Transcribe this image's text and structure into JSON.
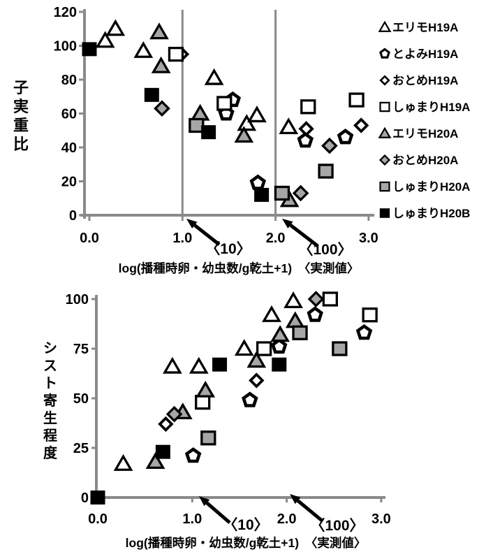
{
  "colors": {
    "background": "#ffffff",
    "axis_gray": "#8a8a8a",
    "marker_gray_fill": "#a6a6a6",
    "marker_black": "#000000",
    "marker_open_fill": "#ffffff",
    "text": "#000000"
  },
  "legend": {
    "items": [
      {
        "label": "エリモH19A",
        "marker": "triangle-open"
      },
      {
        "label": "とよみH19A",
        "marker": "pentagon-open"
      },
      {
        "label": "おとめH19A",
        "marker": "diamond-open"
      },
      {
        "label": "しゅまりH19A",
        "marker": "square-open"
      },
      {
        "label": "エリモH20A",
        "marker": "triangle-gray"
      },
      {
        "label": "おとめH20A",
        "marker": "diamond-gray"
      },
      {
        "label": "しゅまりH20A",
        "marker": "square-gray"
      },
      {
        "label": "しゅまりH20B",
        "marker": "square-black"
      }
    ]
  },
  "chart_data": [
    {
      "id": "top",
      "type": "scatter",
      "title": "",
      "xlabel": "log(播種時卵・幼虫数/g乾土+1)　〈実測値〉",
      "ylabel": "子実重比",
      "xlim": [
        0.0,
        3.0
      ],
      "ylim": [
        0,
        120
      ],
      "xtick_values": [
        0,
        1,
        2,
        3
      ],
      "xtick_labels": [
        "0.0",
        "1.0",
        "2.0",
        "3.0"
      ],
      "ytick_values": [
        120,
        100,
        80,
        60,
        40,
        20,
        0
      ],
      "ytick_labels": [
        "120",
        "100",
        "80",
        "60",
        "40",
        "20",
        "0"
      ],
      "gridlines_x": [
        1.0,
        2.0
      ],
      "grid": "vertical-only",
      "legend_position": "right-outside",
      "annotations": [
        {
          "text": "〈10〉",
          "points_to_x": 1.0
        },
        {
          "text": "〈100〉",
          "points_to_x": 2.0
        }
      ],
      "series": [
        {
          "name": "エリモH19A",
          "marker": "triangle-open",
          "points": [
            [
              0.17,
              103
            ],
            [
              0.28,
              110
            ],
            [
              0.58,
              97
            ],
            [
              1.34,
              81
            ],
            [
              1.69,
              54
            ],
            [
              1.8,
              59
            ],
            [
              2.14,
              52
            ]
          ]
        },
        {
          "name": "とよみH19A",
          "marker": "pentagon-open",
          "points": [
            [
              1.47,
              60
            ],
            [
              1.54,
              68
            ],
            [
              1.81,
              19
            ],
            [
              2.32,
              44
            ],
            [
              2.75,
              46
            ]
          ]
        },
        {
          "name": "おとめH19A",
          "marker": "diamond-open",
          "points": [
            [
              0.99,
              95
            ],
            [
              2.33,
              51
            ],
            [
              2.92,
              53
            ]
          ]
        },
        {
          "name": "しゅまりH19A",
          "marker": "square-open",
          "points": [
            [
              0.93,
              95
            ],
            [
              1.45,
              66
            ],
            [
              2.35,
              64
            ],
            [
              2.87,
              68
            ]
          ]
        },
        {
          "name": "エリモH20A",
          "marker": "triangle-gray",
          "points": [
            [
              0.75,
              108
            ],
            [
              0.77,
              88
            ],
            [
              1.19,
              60
            ],
            [
              1.66,
              47
            ],
            [
              2.15,
              9
            ]
          ]
        },
        {
          "name": "おとめH20A",
          "marker": "diamond-gray",
          "points": [
            [
              0.78,
              63
            ],
            [
              2.27,
              13
            ],
            [
              2.58,
              41
            ]
          ]
        },
        {
          "name": "しゅまりH20A",
          "marker": "square-gray",
          "points": [
            [
              1.15,
              53
            ],
            [
              2.07,
              13
            ],
            [
              2.54,
              26
            ]
          ]
        },
        {
          "name": "しゅまりH20B",
          "marker": "square-black",
          "points": [
            [
              0.0,
              98
            ],
            [
              0.67,
              71
            ],
            [
              1.28,
              49
            ],
            [
              1.85,
              12
            ]
          ]
        }
      ]
    },
    {
      "id": "bottom",
      "type": "scatter",
      "title": "",
      "xlabel": "log(播種時卵・幼虫数/g乾土+1)　〈実測値〉",
      "ylabel": "シスト寄生程度",
      "xlim": [
        0.0,
        3.0
      ],
      "ylim": [
        0,
        100
      ],
      "xtick_values": [
        0,
        1,
        2,
        3
      ],
      "xtick_labels": [
        "0.0",
        "1.0",
        "2.0",
        "3.0"
      ],
      "ytick_values": [
        100,
        75,
        50,
        25,
        0
      ],
      "ytick_labels": [
        "100",
        "75",
        "50",
        "25",
        "0"
      ],
      "gridlines_x": [],
      "grid": "off",
      "legend_position": "none",
      "annotations": [
        {
          "text": "〈10〉",
          "points_to_x": 1.0
        },
        {
          "text": "〈100〉",
          "points_to_x": 2.0
        }
      ],
      "series": [
        {
          "name": "エリモH19A",
          "marker": "triangle-open",
          "points": [
            [
              0.27,
              17
            ],
            [
              0.79,
              66
            ],
            [
              1.07,
              66
            ],
            [
              1.55,
              75
            ],
            [
              1.84,
              92
            ],
            [
              2.07,
              99
            ]
          ]
        },
        {
          "name": "とよみH19A",
          "marker": "pentagon-open",
          "points": [
            [
              1.01,
              21
            ],
            [
              1.61,
              49
            ],
            [
              1.92,
              76
            ],
            [
              2.3,
              92
            ],
            [
              2.82,
              83
            ]
          ]
        },
        {
          "name": "おとめH19A",
          "marker": "diamond-open",
          "points": [
            [
              0.72,
              37
            ],
            [
              1.68,
              59
            ]
          ]
        },
        {
          "name": "しゅまりH19A",
          "marker": "square-open",
          "points": [
            [
              1.11,
              48
            ],
            [
              1.76,
              75
            ],
            [
              2.46,
              100
            ],
            [
              2.88,
              92
            ]
          ]
        },
        {
          "name": "エリモH20A",
          "marker": "triangle-gray",
          "points": [
            [
              0.61,
              18
            ],
            [
              0.9,
              43
            ],
            [
              1.14,
              54
            ],
            [
              1.68,
              69
            ],
            [
              1.93,
              82
            ],
            [
              2.09,
              89
            ]
          ]
        },
        {
          "name": "おとめH20A",
          "marker": "diamond-gray",
          "points": [
            [
              0.81,
              42
            ],
            [
              2.31,
              100
            ]
          ]
        },
        {
          "name": "しゅまりH20A",
          "marker": "square-gray",
          "points": [
            [
              1.17,
              30
            ],
            [
              2.14,
              83
            ],
            [
              2.56,
              75
            ]
          ]
        },
        {
          "name": "しゅまりH20B",
          "marker": "square-black",
          "points": [
            [
              0.0,
              0
            ],
            [
              0.69,
              23
            ],
            [
              1.29,
              67
            ],
            [
              1.92,
              67
            ]
          ]
        }
      ]
    }
  ]
}
